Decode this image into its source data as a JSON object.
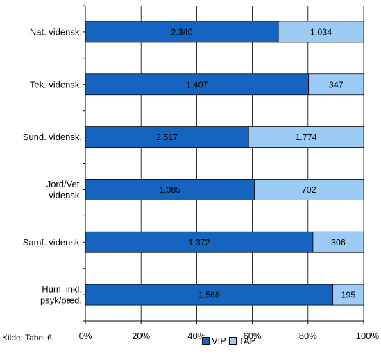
{
  "chart_data": {
    "type": "bar",
    "orientation": "horizontal",
    "stacked": "percent",
    "categories": [
      "Nat. vidensk.",
      "Tek. vidensk.",
      "Sund. vidensk.",
      "Jord/Vet. vidensk.",
      "Samf. vidensk.",
      "Hum. inkl. psyk/pæd."
    ],
    "category_lines": [
      [
        "Nat. vidensk."
      ],
      [
        "Tek. vidensk."
      ],
      [
        "Sund. vidensk."
      ],
      [
        "Jord/Vet.",
        "vidensk."
      ],
      [
        "Samf. vidensk."
      ],
      [
        "Hum. inkl.",
        "psyk/pæd."
      ]
    ],
    "series": [
      {
        "name": "VIP",
        "color": "#1565c0",
        "values": [
          2340,
          1407,
          2517,
          1085,
          1372,
          1568
        ],
        "labels": [
          "2.340",
          "1.407",
          "2.517",
          "1.085",
          "1.372",
          "1.568"
        ]
      },
      {
        "name": "TAP",
        "color": "#9ccbf5",
        "values": [
          1034,
          347,
          1774,
          702,
          306,
          195
        ],
        "labels": [
          "1.034",
          "347",
          "1.774",
          "702",
          "306",
          "195"
        ]
      }
    ],
    "x_ticks": [
      "0%",
      "20%",
      "40%",
      "60%",
      "80%",
      "100%"
    ],
    "xlim": [
      0,
      100
    ],
    "grid": true,
    "legend_position": "bottom"
  },
  "source_note": "Kilde: Tabel 6"
}
